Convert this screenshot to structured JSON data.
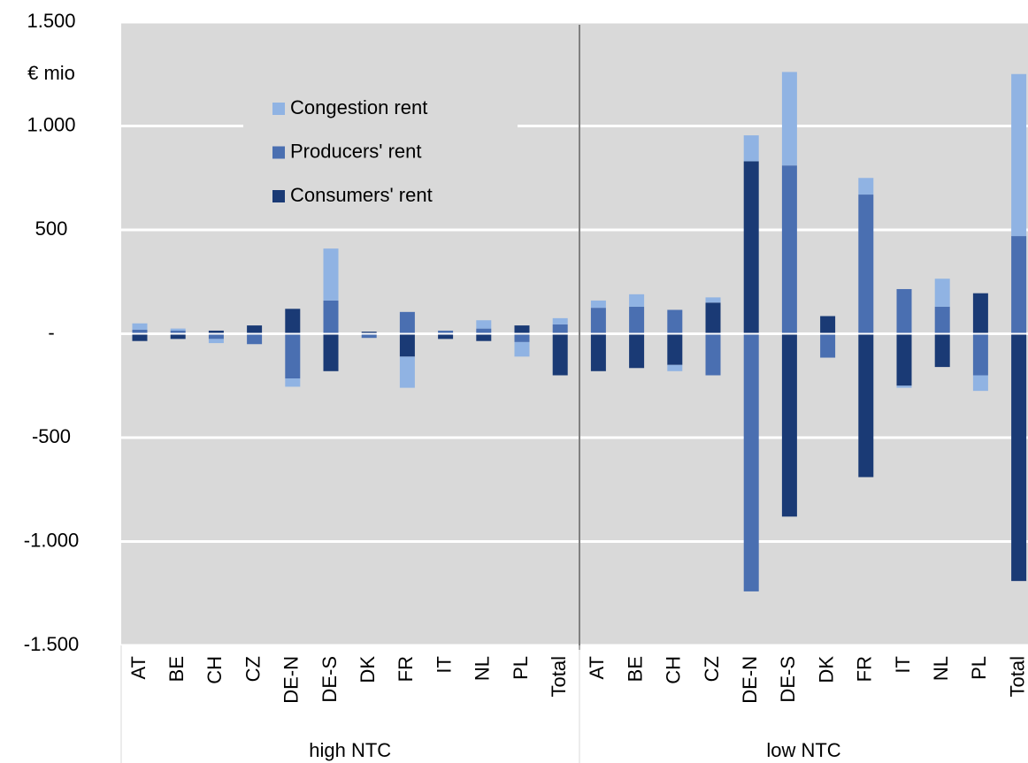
{
  "chart_data": {
    "type": "bar",
    "stacked": true,
    "y_unit": "€ mio",
    "categories": [
      "AT",
      "BE",
      "CH",
      "CZ",
      "DE-N",
      "DE-S",
      "DK",
      "FR",
      "IT",
      "NL",
      "PL",
      "Total",
      "AT",
      "BE",
      "CH",
      "CZ",
      "DE-N",
      "DE-S",
      "DK",
      "FR",
      "IT",
      "NL",
      "PL",
      "Total"
    ],
    "groups": [
      "high NTC",
      "low NTC"
    ],
    "series": [
      {
        "name": "Consumers' rent",
        "color": "#1a3a75",
        "values": [
          -35,
          -25,
          15,
          40,
          120,
          -180,
          10,
          -110,
          -25,
          -35,
          40,
          -200,
          -180,
          -165,
          -150,
          150,
          830,
          -880,
          85,
          -690,
          -250,
          -160,
          195,
          -1190
        ]
      },
      {
        "name": "Producers' rent",
        "color": "#4a6fb1",
        "values": [
          20,
          15,
          -25,
          -50,
          -215,
          160,
          -20,
          105,
          15,
          25,
          -40,
          45,
          125,
          130,
          115,
          -200,
          -1240,
          810,
          -115,
          670,
          215,
          130,
          -200,
          470
        ]
      },
      {
        "name": "Congestion rent",
        "color": "#90b3e3",
        "values": [
          30,
          10,
          -20,
          0,
          -40,
          250,
          0,
          -150,
          0,
          40,
          -70,
          30,
          35,
          60,
          -30,
          25,
          125,
          450,
          0,
          80,
          -10,
          135,
          -75,
          780
        ]
      }
    ],
    "legend_order": [
      2,
      1,
      0
    ],
    "ylim": [
      -1500,
      1500
    ],
    "yticks": [
      {
        "value": -1500,
        "label": "-1.500"
      },
      {
        "value": -1000,
        "label": "-1.000"
      },
      -500,
      {
        "value": 0,
        "label": "-"
      },
      500,
      {
        "value": 1000,
        "label": "1.000"
      },
      {
        "value": 1500,
        "label": "1.500"
      }
    ],
    "grid": true
  }
}
